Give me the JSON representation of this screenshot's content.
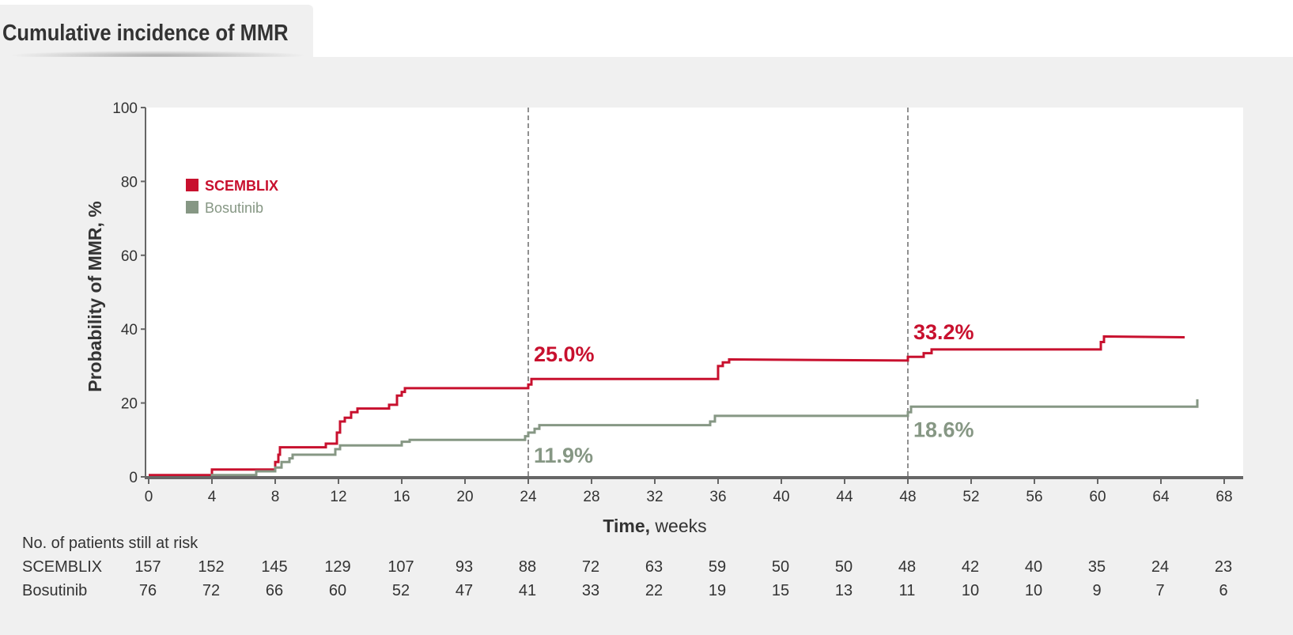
{
  "header": {
    "title": "Cumulative incidence of MMR"
  },
  "colors": {
    "scemblix": "#c8102e",
    "bosutinib": "#869784",
    "axis": "#666666",
    "text": "#333333"
  },
  "chart_data": {
    "type": "line",
    "ylabel": "Probability of MMR, %",
    "xlabel_bold": "Time,",
    "xlabel_rest": " weeks",
    "xlim": [
      0,
      68
    ],
    "ylim": [
      0,
      100
    ],
    "xticks": [
      0,
      4,
      8,
      12,
      16,
      20,
      24,
      28,
      32,
      36,
      40,
      44,
      48,
      52,
      56,
      60,
      64,
      68
    ],
    "yticks": [
      0,
      20,
      40,
      60,
      80,
      100
    ],
    "reference_lines_x": [
      24,
      48
    ],
    "legend_position": "top-left",
    "series": [
      {
        "name": "SCEMBLIX",
        "color": "#c8102e",
        "points": [
          [
            0,
            0.5
          ],
          [
            4,
            0.5
          ],
          [
            4,
            2
          ],
          [
            8,
            2
          ],
          [
            8,
            4
          ],
          [
            8.2,
            4
          ],
          [
            8.2,
            6
          ],
          [
            8.3,
            6
          ],
          [
            8.3,
            8
          ],
          [
            11.2,
            8
          ],
          [
            11.2,
            9
          ],
          [
            11.9,
            9
          ],
          [
            11.9,
            12
          ],
          [
            12.1,
            12
          ],
          [
            12.1,
            15
          ],
          [
            12.4,
            15
          ],
          [
            12.4,
            16
          ],
          [
            12.8,
            16
          ],
          [
            12.8,
            17.5
          ],
          [
            13.2,
            17.5
          ],
          [
            13.2,
            18.5
          ],
          [
            15.2,
            18.5
          ],
          [
            15.2,
            19.5
          ],
          [
            15.7,
            19.5
          ],
          [
            15.7,
            22
          ],
          [
            16,
            22
          ],
          [
            16,
            23
          ],
          [
            16.2,
            23
          ],
          [
            16.2,
            24
          ],
          [
            24,
            24
          ],
          [
            24,
            25
          ],
          [
            24.2,
            25
          ],
          [
            24.2,
            26.5
          ],
          [
            36,
            26.5
          ],
          [
            36,
            30
          ],
          [
            36.3,
            30
          ],
          [
            36.3,
            31
          ],
          [
            36.7,
            31
          ],
          [
            36.7,
            31.8
          ],
          [
            48,
            31.5
          ],
          [
            48,
            32.5
          ],
          [
            49,
            32.5
          ],
          [
            49,
            33.5
          ],
          [
            49.5,
            33.5
          ],
          [
            49.5,
            34.5
          ],
          [
            60.2,
            34.5
          ],
          [
            60.2,
            36.5
          ],
          [
            60.4,
            36.5
          ],
          [
            60.4,
            38
          ],
          [
            65.5,
            37.8
          ]
        ]
      },
      {
        "name": "Bosutinib",
        "color": "#869784",
        "points": [
          [
            4,
            0
          ],
          [
            4,
            0.5
          ],
          [
            6.8,
            0.5
          ],
          [
            6.8,
            1.5
          ],
          [
            8,
            1.5
          ],
          [
            8,
            2.5
          ],
          [
            8.4,
            2.5
          ],
          [
            8.4,
            4
          ],
          [
            8.9,
            4
          ],
          [
            8.9,
            5
          ],
          [
            9.1,
            5
          ],
          [
            9.1,
            6
          ],
          [
            11.8,
            6
          ],
          [
            11.8,
            7.5
          ],
          [
            12.1,
            7.5
          ],
          [
            12.1,
            8.5
          ],
          [
            16,
            8.5
          ],
          [
            16,
            9.5
          ],
          [
            16.5,
            9.5
          ],
          [
            16.5,
            10
          ],
          [
            23.8,
            10
          ],
          [
            23.8,
            11
          ],
          [
            24,
            11
          ],
          [
            24,
            12
          ],
          [
            24.4,
            12
          ],
          [
            24.4,
            13
          ],
          [
            24.7,
            13
          ],
          [
            24.7,
            14
          ],
          [
            35.5,
            14
          ],
          [
            35.5,
            15
          ],
          [
            35.8,
            15
          ],
          [
            35.8,
            16.5
          ],
          [
            48,
            16.5
          ],
          [
            48,
            17.5
          ],
          [
            48.2,
            17.5
          ],
          [
            48.2,
            19
          ],
          [
            66.3,
            19
          ],
          [
            66.3,
            21
          ]
        ]
      }
    ],
    "annotations": [
      {
        "text": "25.0%",
        "series": "SCEMBLIX",
        "x": 24
      },
      {
        "text": "33.2%",
        "series": "SCEMBLIX",
        "x": 48
      },
      {
        "text": "11.9%",
        "series": "Bosutinib",
        "x": 24
      },
      {
        "text": "18.6%",
        "series": "Bosutinib",
        "x": 48
      }
    ],
    "risk_table": {
      "title": "No. of patients still at risk",
      "rows": [
        {
          "label": "SCEMBLIX",
          "values": [
            157,
            152,
            145,
            129,
            107,
            93,
            88,
            72,
            63,
            59,
            50,
            50,
            48,
            42,
            40,
            35,
            24,
            23
          ]
        },
        {
          "label": "Bosutinib",
          "values": [
            76,
            72,
            66,
            60,
            52,
            47,
            41,
            33,
            22,
            19,
            15,
            13,
            11,
            10,
            10,
            9,
            7,
            6
          ]
        }
      ]
    }
  }
}
